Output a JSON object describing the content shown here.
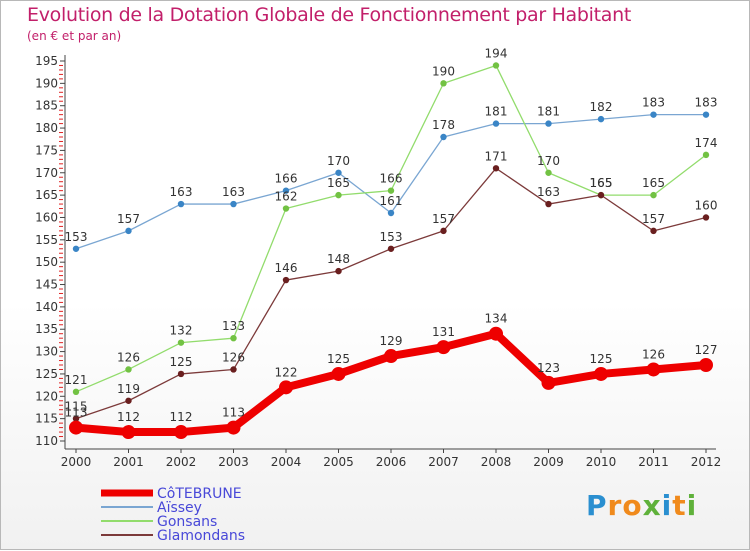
{
  "title": "Evolution de la Dotation Globale de Fonctionnement par Habitant",
  "subtitle": "(en € et par an)",
  "logo": {
    "letters": [
      "P",
      "r",
      "o",
      "x",
      "i",
      "t",
      "i"
    ],
    "colors": [
      "#2a8fd0",
      "#f08a1c",
      "#f08a1c",
      "#5fb13a",
      "#2a8fd0",
      "#f08a1c",
      "#5fb13a"
    ]
  },
  "chart_data": {
    "type": "line",
    "title": "Evolution de la Dotation Globale de Fonctionnement par Habitant",
    "subtitle": "(en € et par an)",
    "xlabel": "",
    "ylabel": "",
    "ylim": [
      110,
      195
    ],
    "y_ticks": [
      110,
      115,
      120,
      125,
      130,
      135,
      140,
      145,
      150,
      155,
      160,
      165,
      170,
      175,
      180,
      185,
      190,
      195
    ],
    "categories": [
      "2000",
      "2001",
      "2002",
      "2003",
      "2004",
      "2005",
      "2006",
      "2007",
      "2008",
      "2009",
      "2010",
      "2011",
      "2012"
    ],
    "grid": false,
    "legend_position": "bottom-left",
    "series": [
      {
        "name": "CôTEBRUNE",
        "color": "#ee0000",
        "emphasis": true,
        "values": [
          113,
          112,
          112,
          113,
          122,
          125,
          129,
          131,
          134,
          123,
          125,
          126,
          127
        ]
      },
      {
        "name": "Aïssey",
        "color": "#7aa6d2",
        "marker": "#3a85c6",
        "values": [
          153,
          157,
          163,
          163,
          166,
          170,
          161,
          178,
          181,
          181,
          182,
          183,
          183
        ]
      },
      {
        "name": "Gonsans",
        "color": "#92dc6c",
        "marker": "#72c243",
        "values": [
          121,
          126,
          132,
          133,
          162,
          165,
          166,
          190,
          194,
          170,
          165,
          165,
          174
        ]
      },
      {
        "name": "Glamondans",
        "color": "#7c3a3a",
        "marker": "#6a1f1f",
        "values": [
          115,
          119,
          125,
          126,
          146,
          148,
          153,
          157,
          171,
          163,
          165,
          157,
          160
        ]
      }
    ]
  }
}
